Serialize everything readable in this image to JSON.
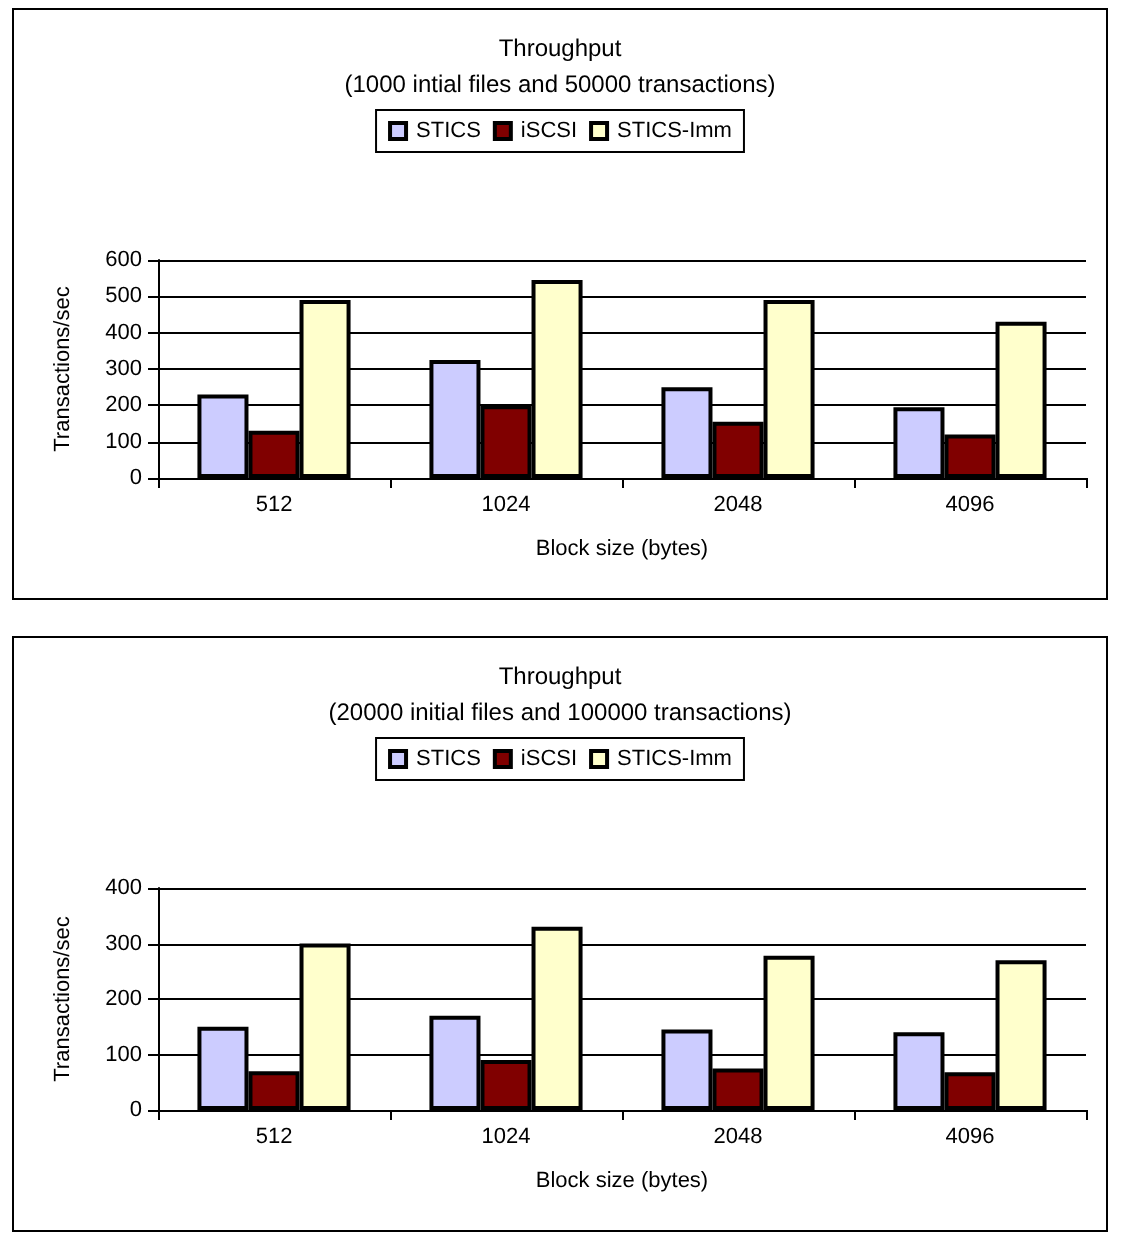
{
  "chart_data": [
    {
      "type": "bar",
      "title": "Throughput",
      "subtitle": "(1000 intial files and 50000 transactions)",
      "xlabel": "Block size (bytes)",
      "ylabel": "Transactions/sec",
      "categories": [
        "512",
        "1024",
        "2048",
        "4096"
      ],
      "series": [
        {
          "name": "STICS",
          "color": "#ccccff",
          "values": [
            230,
            325,
            250,
            195
          ]
        },
        {
          "name": "iSCSI",
          "color": "#800000",
          "values": [
            130,
            200,
            155,
            120
          ]
        },
        {
          "name": "STICS-Imm",
          "color": "#ffffcc",
          "values": [
            490,
            545,
            490,
            430
          ]
        }
      ],
      "ylim": [
        0,
        600
      ],
      "yticks": [
        0,
        100,
        200,
        300,
        400,
        500,
        600
      ],
      "grid": "y",
      "legend": "top"
    },
    {
      "type": "bar",
      "title": "Throughput",
      "subtitle": "(20000 initial files and 100000 transactions)",
      "xlabel": "Block size (bytes)",
      "ylabel": "Transactions/sec",
      "categories": [
        "512",
        "1024",
        "2048",
        "4096"
      ],
      "series": [
        {
          "name": "STICS",
          "color": "#ccccff",
          "values": [
            150,
            170,
            145,
            140
          ]
        },
        {
          "name": "iSCSI",
          "color": "#800000",
          "values": [
            70,
            90,
            75,
            68
          ]
        },
        {
          "name": "STICS-Imm",
          "color": "#ffffcc",
          "values": [
            300,
            330,
            278,
            270
          ]
        }
      ],
      "ylim": [
        0,
        400
      ],
      "yticks": [
        0,
        100,
        200,
        300,
        400
      ],
      "grid": "y",
      "legend": "top"
    }
  ]
}
